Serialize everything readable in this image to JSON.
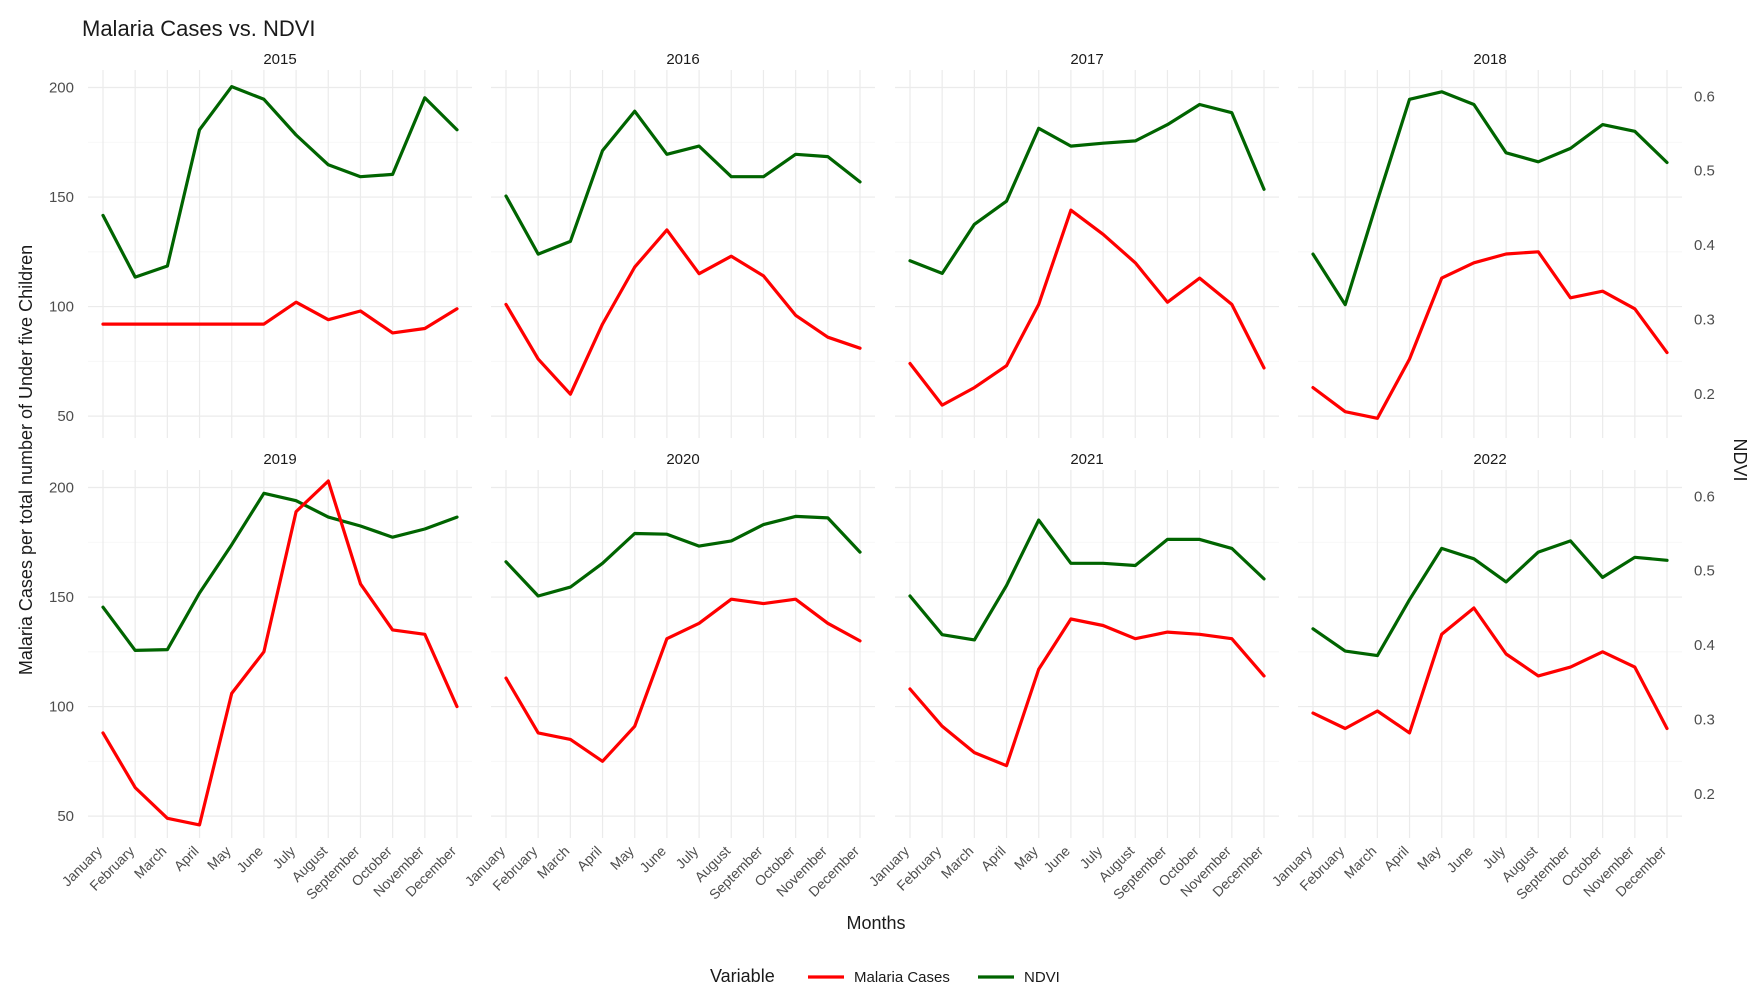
{
  "chart_data": {
    "type": "line",
    "title": "Malaria Cases vs. NDVI",
    "xlabel": "Months",
    "ylabel": "Malaria Cases per total number of Under five Children",
    "y2label": "NDVI",
    "ylim": [
      40,
      208
    ],
    "y2lim": [
      0.1409,
      0.6353
    ],
    "yticks": [
      50,
      100,
      150,
      200
    ],
    "y2ticks": [
      0.2,
      0.3,
      0.4,
      0.5,
      0.6
    ],
    "grid": true,
    "legend_position": "bottom",
    "legend_title": "Variable",
    "categories": [
      "January",
      "February",
      "March",
      "April",
      "May",
      "June",
      "July",
      "August",
      "September",
      "October",
      "November",
      "December"
    ],
    "series_styles": [
      {
        "name": "Malaria Cases",
        "color": "#ff0000"
      },
      {
        "name": "NDVI",
        "color": "#006400"
      }
    ],
    "panels": [
      {
        "year": "2015",
        "malaria": [
          92,
          92,
          92,
          92,
          92,
          92,
          102,
          94,
          98,
          88,
          90,
          99
        ],
        "ndvi": [
          0.44,
          0.357,
          0.372,
          0.555,
          0.613,
          0.596,
          0.548,
          0.508,
          0.492,
          0.495,
          0.598,
          0.555
        ]
      },
      {
        "year": "2016",
        "malaria": [
          101,
          76,
          60,
          92,
          118,
          135,
          115,
          123,
          114,
          96,
          86,
          81
        ],
        "ndvi": [
          0.466,
          0.388,
          0.405,
          0.527,
          0.58,
          0.522,
          0.533,
          0.492,
          0.492,
          0.522,
          0.519,
          0.485
        ]
      },
      {
        "year": "2017",
        "malaria": [
          74,
          55,
          63,
          73,
          101,
          144,
          133,
          120,
          102,
          113,
          101,
          72
        ],
        "ndvi": [
          0.379,
          0.362,
          0.428,
          0.459,
          0.557,
          0.533,
          0.537,
          0.54,
          0.562,
          0.589,
          0.578,
          0.475
        ]
      },
      {
        "year": "2018",
        "malaria": [
          63,
          52,
          49,
          76,
          113,
          120,
          124,
          125,
          104,
          107,
          99,
          79
        ],
        "ndvi": [
          0.388,
          0.32,
          0.46,
          0.596,
          0.606,
          0.589,
          0.524,
          0.512,
          0.53,
          0.562,
          0.553,
          0.511
        ]
      },
      {
        "year": "2019",
        "malaria": [
          88,
          63,
          49,
          46,
          106,
          125,
          189,
          203,
          156,
          135,
          133,
          100
        ],
        "ndvi": [
          0.451,
          0.393,
          0.394,
          0.47,
          0.535,
          0.604,
          0.594,
          0.572,
          0.56,
          0.545,
          0.556,
          0.572
        ]
      },
      {
        "year": "2020",
        "malaria": [
          113,
          88,
          85,
          75,
          91,
          131,
          138,
          149,
          147,
          149,
          138,
          130
        ],
        "ndvi": [
          0.512,
          0.466,
          0.478,
          0.51,
          0.55,
          0.549,
          0.533,
          0.54,
          0.562,
          0.573,
          0.571,
          0.525
        ]
      },
      {
        "year": "2021",
        "malaria": [
          108,
          91,
          79,
          73,
          117,
          140,
          137,
          131,
          134,
          133,
          131,
          114
        ],
        "ndvi": [
          0.466,
          0.414,
          0.407,
          0.48,
          0.568,
          0.51,
          0.51,
          0.507,
          0.542,
          0.542,
          0.53,
          0.489
        ]
      },
      {
        "year": "2022",
        "malaria": [
          97,
          90,
          98,
          88,
          133,
          145,
          124,
          114,
          118,
          125,
          118,
          90
        ],
        "ndvi": [
          0.422,
          0.392,
          0.386,
          0.461,
          0.53,
          0.516,
          0.485,
          0.525,
          0.54,
          0.491,
          0.518,
          0.514
        ]
      }
    ]
  }
}
